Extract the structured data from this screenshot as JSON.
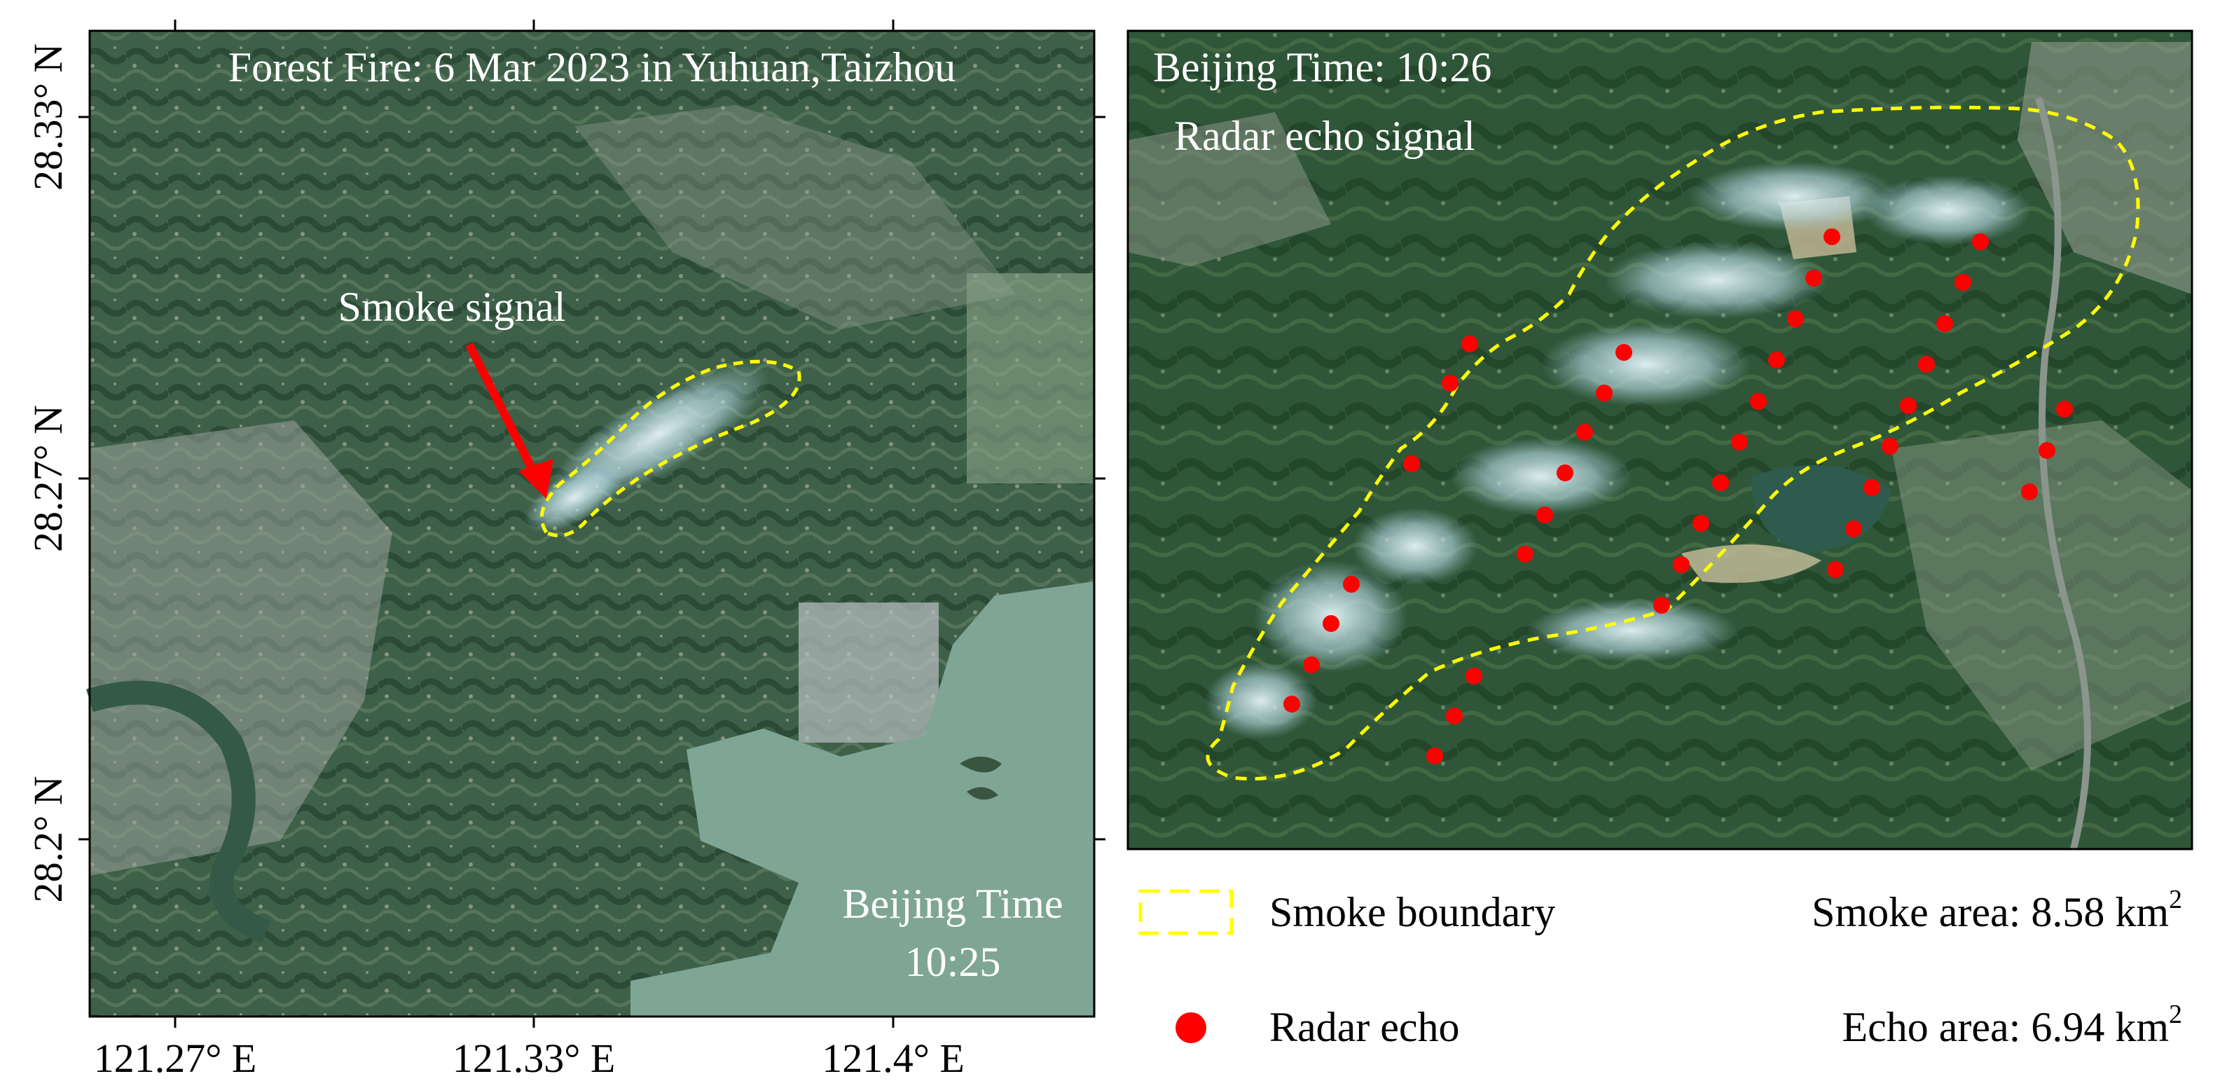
{
  "left_map": {
    "title": "Forest Fire: 6 Mar 2023 in Yuhuan,Taizhou",
    "annotation": "Smoke signal",
    "time_label": "Beijing Time",
    "time_value": "10:25",
    "lat_ticks": [
      "28.33° N",
      "28.27° N",
      "28.2° N"
    ],
    "lon_ticks": [
      "121.27° E",
      "121.33° E",
      "121.4° E"
    ]
  },
  "right_map": {
    "time_label": "Beijing Time: 10:26",
    "subtitle": "Radar echo signal"
  },
  "legend": {
    "smoke_boundary": "Smoke boundary",
    "radar_echo": "Radar echo",
    "smoke_area_prefix": "Smoke area: 8.58 km",
    "smoke_area_sup": "2",
    "echo_area_prefix": "Echo area: 6.94 km",
    "echo_area_sup": "2"
  },
  "colors": {
    "boundary": "#ffff00",
    "echo": "#ff0000",
    "arrow": "#ff0000",
    "water": "#7fa595"
  }
}
